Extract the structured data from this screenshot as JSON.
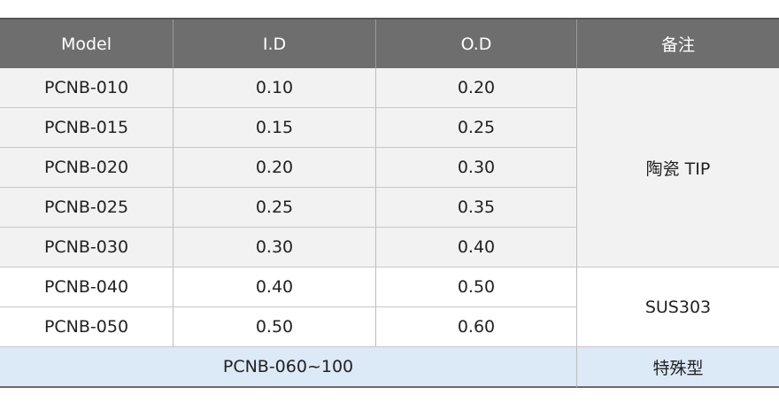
{
  "table": {
    "header": [
      "Model",
      "I.D",
      "O.D",
      "备注"
    ],
    "rows": [
      [
        "PCNB-010",
        "0.10",
        "0.20"
      ],
      [
        "PCNB-015",
        "0.15",
        "0.25"
      ],
      [
        "PCNB-020",
        "0.20",
        "0.30"
      ],
      [
        "PCNB-025",
        "0.25",
        "0.35"
      ],
      [
        "PCNB-030",
        "0.30",
        "0.40"
      ],
      [
        "PCNB-040",
        "0.40",
        "0.50"
      ],
      [
        "PCNB-050",
        "0.50",
        "0.60"
      ]
    ],
    "notes": [
      "陶瓷 TIP",
      "SUS303"
    ],
    "footer": [
      "PCNB-060~100",
      "特殊型"
    ]
  }
}
